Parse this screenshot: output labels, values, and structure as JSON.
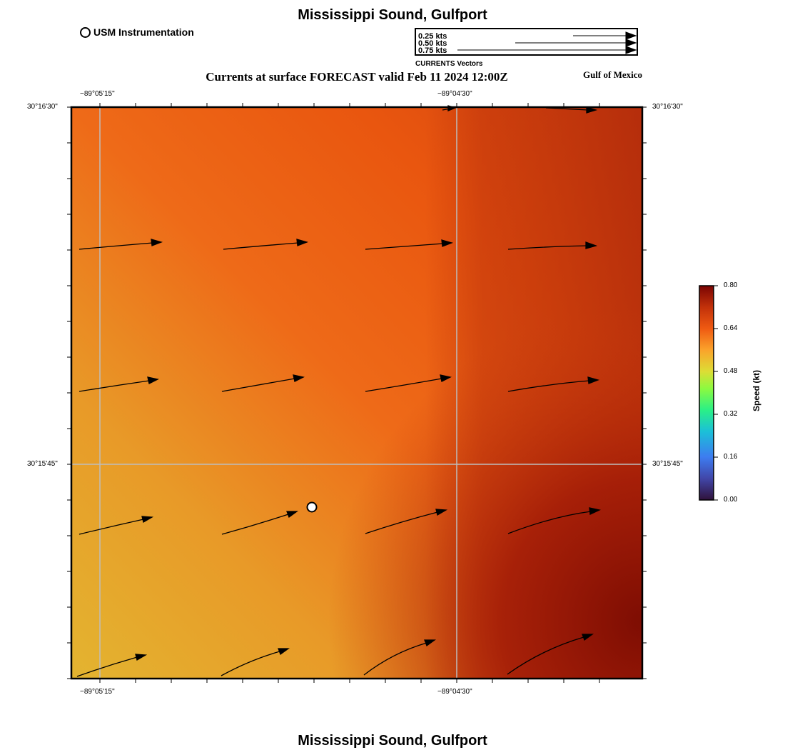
{
  "header": {
    "title": "Mississippi Sound, Gulfport",
    "subtitle": "Currents at surface FORECAST valid Feb 11 2024 12:00Z",
    "region": "Gulf of Mexico",
    "footer_title": "Mississippi Sound, Gulfport"
  },
  "legend": {
    "station_label": "USM Instrumentation"
  },
  "vector_scale": {
    "caption": "CURRENTS Vectors",
    "items": [
      {
        "label": "0.25 kts",
        "speed": 0.25
      },
      {
        "label": "0.50 kts",
        "speed": 0.5
      },
      {
        "label": "0.75 kts",
        "speed": 0.75
      }
    ]
  },
  "axes": {
    "lon_left": "−89°05'15\"",
    "lon_right": "−89°04'30\"",
    "lat_top": "30°16'30\"",
    "lat_mid": "30°15'45\""
  },
  "colorbar": {
    "title": "Speed (kt)",
    "ticks": [
      "0.80",
      "0.64",
      "0.48",
      "0.32",
      "0.16",
      "0.00"
    ],
    "min": 0.0,
    "max": 0.8
  },
  "colors": {
    "field_low": "#e2b32f",
    "field_mid": "#ef5a12",
    "field_high": "#8a1105",
    "grid": "#bbbbbb"
  }
}
